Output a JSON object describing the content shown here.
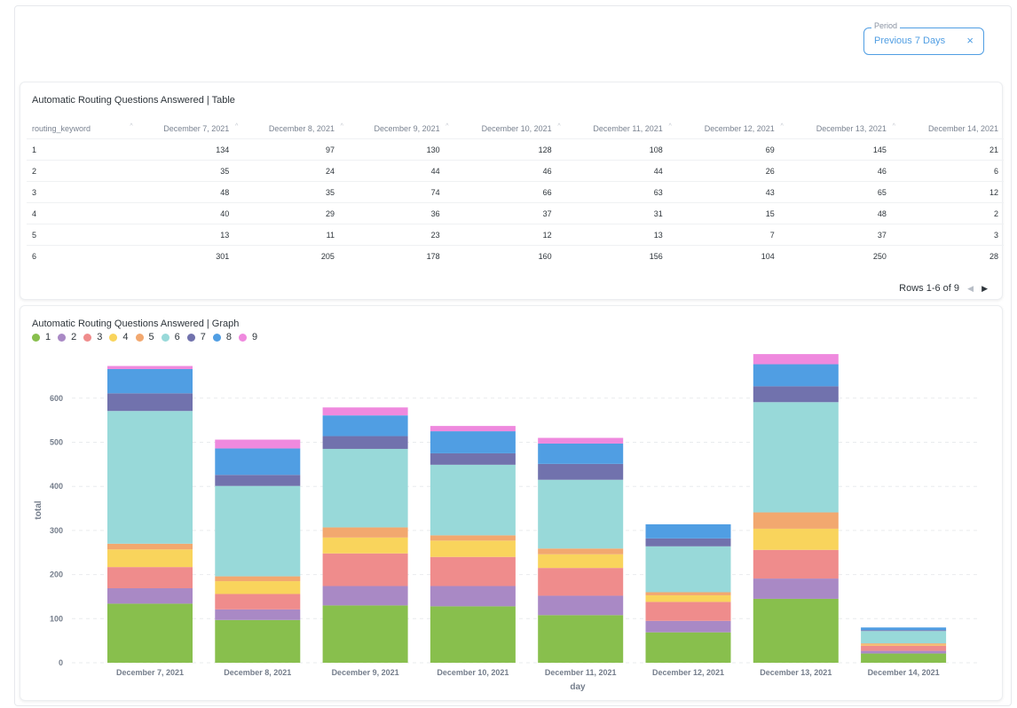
{
  "filter": {
    "legend": "Period",
    "value": "Previous 7 Days",
    "clear_icon": "×"
  },
  "table_card": {
    "title": "Automatic Routing Questions Answered | Table",
    "columns": [
      "routing_keyword",
      "December 7, 2021",
      "December 8, 2021",
      "December 9, 2021",
      "December 10, 2021",
      "December 11, 2021",
      "December 12, 2021",
      "December 13, 2021",
      "December 14, 2021"
    ],
    "rows": [
      [
        "1",
        "134",
        "97",
        "130",
        "128",
        "108",
        "69",
        "145",
        "21"
      ],
      [
        "2",
        "35",
        "24",
        "44",
        "46",
        "44",
        "26",
        "46",
        "6"
      ],
      [
        "3",
        "48",
        "35",
        "74",
        "66",
        "63",
        "43",
        "65",
        "12"
      ],
      [
        "4",
        "40",
        "29",
        "36",
        "37",
        "31",
        "15",
        "48",
        "2"
      ],
      [
        "5",
        "13",
        "11",
        "23",
        "12",
        "13",
        "7",
        "37",
        "3"
      ],
      [
        "6",
        "301",
        "205",
        "178",
        "160",
        "156",
        "104",
        "250",
        "28"
      ]
    ],
    "pagination": "Rows 1-6 of 9",
    "prev_icon": "◀",
    "next_icon": "▶"
  },
  "graph_card": {
    "title": "Automatic Routing Questions Answered | Graph"
  },
  "chart_data": {
    "type": "bar",
    "stacked": true,
    "title": "Automatic Routing Questions Answered | Graph",
    "xlabel": "day",
    "ylabel": "total",
    "ylim": [
      0,
      700
    ],
    "yticks": [
      0,
      100,
      200,
      300,
      400,
      500,
      600
    ],
    "categories": [
      "December 7, 2021",
      "December 8, 2021",
      "December 9, 2021",
      "December 10, 2021",
      "December 11, 2021",
      "December 12, 2021",
      "December 13, 2021",
      "December 14, 2021"
    ],
    "series": [
      {
        "name": "1",
        "color": "#88bf4d",
        "values": [
          134,
          97,
          130,
          128,
          108,
          69,
          145,
          21
        ]
      },
      {
        "name": "2",
        "color": "#a989c5",
        "values": [
          35,
          24,
          44,
          46,
          44,
          26,
          46,
          6
        ]
      },
      {
        "name": "3",
        "color": "#ef8c8c",
        "values": [
          48,
          35,
          74,
          66,
          63,
          43,
          65,
          12
        ]
      },
      {
        "name": "4",
        "color": "#f9d45c",
        "values": [
          40,
          29,
          36,
          37,
          31,
          15,
          48,
          2
        ]
      },
      {
        "name": "5",
        "color": "#f2a86f",
        "values": [
          13,
          11,
          23,
          12,
          13,
          7,
          37,
          3
        ]
      },
      {
        "name": "6",
        "color": "#98d9d9",
        "values": [
          301,
          205,
          178,
          160,
          156,
          104,
          250,
          28
        ]
      },
      {
        "name": "7",
        "color": "#7172ad",
        "values": [
          40,
          25,
          29,
          26,
          36,
          18,
          36,
          2
        ]
      },
      {
        "name": "8",
        "color": "#509ee3",
        "values": [
          55,
          60,
          47,
          50,
          46,
          32,
          50,
          6
        ]
      },
      {
        "name": "9",
        "color": "#ef89de",
        "values": [
          7,
          20,
          18,
          12,
          13,
          0,
          23,
          0
        ]
      }
    ],
    "legend": "top-left"
  }
}
